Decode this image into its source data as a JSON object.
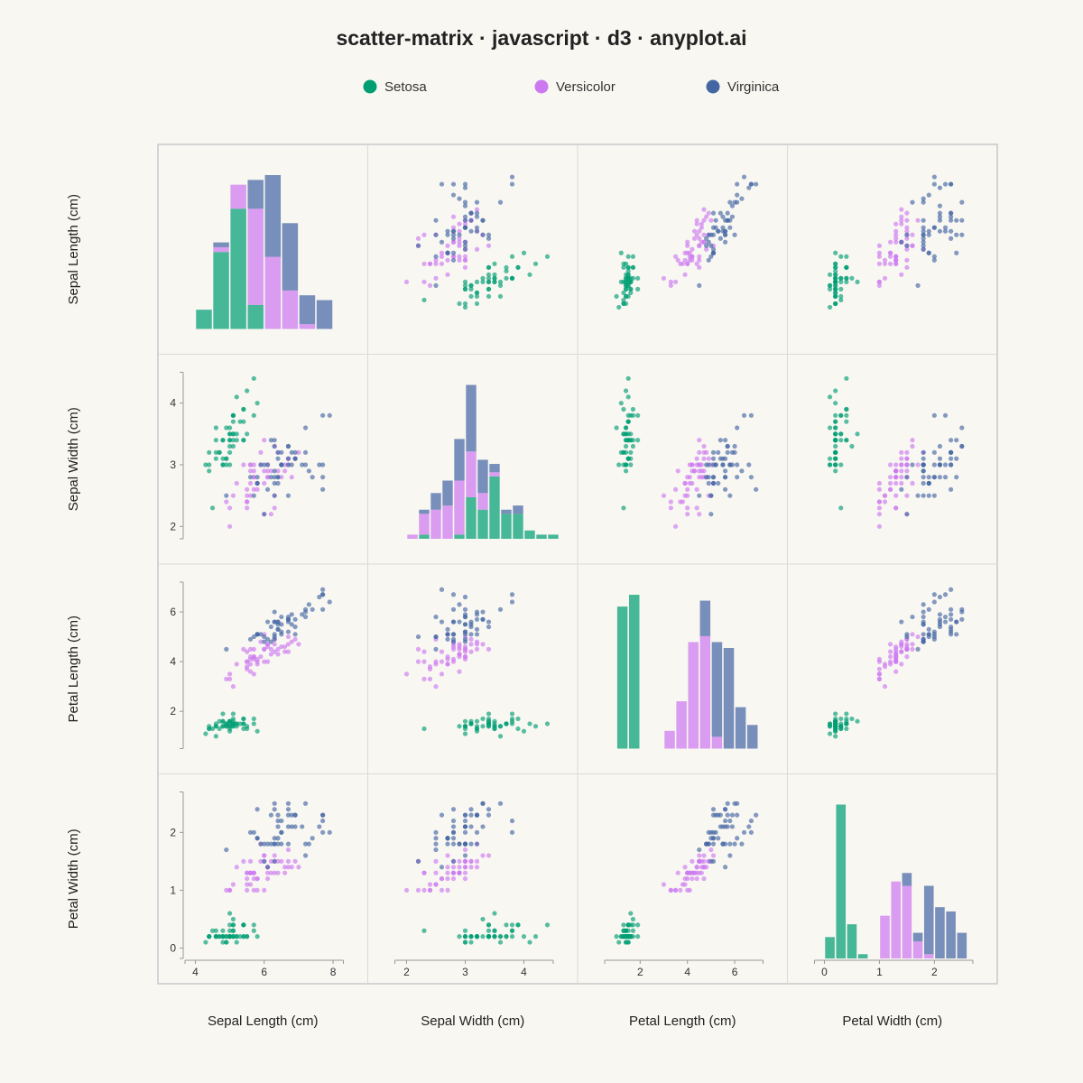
{
  "chart_data": {
    "type": "scatter",
    "title": "scatter-matrix · javascript · d3 · anyplot.ai",
    "grid": true,
    "legend_position": "top",
    "variables": [
      {
        "key": "sepal_length",
        "label": "Sepal Length (cm)",
        "domain": [
          3.7,
          8.3
        ],
        "ticks": [
          4,
          6,
          8
        ]
      },
      {
        "key": "sepal_width",
        "label": "Sepal Width (cm)",
        "domain": [
          1.8,
          4.5
        ],
        "ticks": [
          2,
          3,
          4
        ]
      },
      {
        "key": "petal_length",
        "label": "Petal Length (cm)",
        "domain": [
          0.5,
          7.2
        ],
        "ticks": [
          2,
          4,
          6
        ]
      },
      {
        "key": "petal_width",
        "label": "Petal Width (cm)",
        "domain": [
          -0.18,
          2.7
        ],
        "ticks": [
          0,
          1,
          2
        ]
      }
    ],
    "histogram_bins": [
      {
        "start": 4.0,
        "width": 0.5
      },
      {
        "start": 2.0,
        "width": 0.2
      },
      {
        "start": 1.0,
        "width": 0.5
      },
      {
        "start": 0.0,
        "width": 0.2
      }
    ],
    "series": [
      {
        "name": "Setosa",
        "color": "#009e73",
        "points": [
          [
            5.1,
            3.5,
            1.4,
            0.2
          ],
          [
            4.9,
            3.0,
            1.4,
            0.2
          ],
          [
            4.7,
            3.2,
            1.3,
            0.2
          ],
          [
            4.6,
            3.1,
            1.5,
            0.2
          ],
          [
            5.0,
            3.6,
            1.4,
            0.2
          ],
          [
            5.4,
            3.9,
            1.7,
            0.4
          ],
          [
            4.6,
            3.4,
            1.4,
            0.3
          ],
          [
            5.0,
            3.4,
            1.5,
            0.2
          ],
          [
            4.4,
            2.9,
            1.4,
            0.2
          ],
          [
            4.9,
            3.1,
            1.5,
            0.1
          ],
          [
            5.4,
            3.7,
            1.5,
            0.2
          ],
          [
            4.8,
            3.4,
            1.6,
            0.2
          ],
          [
            4.8,
            3.0,
            1.4,
            0.1
          ],
          [
            4.3,
            3.0,
            1.1,
            0.1
          ],
          [
            5.8,
            4.0,
            1.2,
            0.2
          ],
          [
            5.7,
            4.4,
            1.5,
            0.4
          ],
          [
            5.4,
            3.9,
            1.3,
            0.4
          ],
          [
            5.1,
            3.5,
            1.4,
            0.3
          ],
          [
            5.7,
            3.8,
            1.7,
            0.3
          ],
          [
            5.1,
            3.8,
            1.5,
            0.3
          ],
          [
            5.4,
            3.4,
            1.7,
            0.2
          ],
          [
            5.1,
            3.7,
            1.5,
            0.4
          ],
          [
            4.6,
            3.6,
            1.0,
            0.2
          ],
          [
            5.1,
            3.3,
            1.7,
            0.5
          ],
          [
            4.8,
            3.4,
            1.9,
            0.2
          ],
          [
            5.0,
            3.0,
            1.6,
            0.2
          ],
          [
            5.0,
            3.4,
            1.6,
            0.4
          ],
          [
            5.2,
            3.5,
            1.5,
            0.2
          ],
          [
            5.2,
            3.4,
            1.4,
            0.2
          ],
          [
            4.7,
            3.2,
            1.6,
            0.2
          ],
          [
            4.8,
            3.1,
            1.6,
            0.2
          ],
          [
            5.4,
            3.4,
            1.5,
            0.4
          ],
          [
            5.2,
            4.1,
            1.5,
            0.1
          ],
          [
            5.5,
            4.2,
            1.4,
            0.2
          ],
          [
            4.9,
            3.1,
            1.5,
            0.2
          ],
          [
            5.0,
            3.2,
            1.2,
            0.2
          ],
          [
            5.5,
            3.5,
            1.3,
            0.2
          ],
          [
            4.9,
            3.6,
            1.4,
            0.1
          ],
          [
            4.4,
            3.0,
            1.3,
            0.2
          ],
          [
            5.1,
            3.4,
            1.5,
            0.2
          ],
          [
            5.0,
            3.5,
            1.3,
            0.3
          ],
          [
            4.5,
            2.3,
            1.3,
            0.3
          ],
          [
            4.4,
            3.2,
            1.3,
            0.2
          ],
          [
            5.0,
            3.5,
            1.6,
            0.6
          ],
          [
            5.1,
            3.8,
            1.9,
            0.4
          ],
          [
            4.8,
            3.0,
            1.4,
            0.3
          ],
          [
            5.1,
            3.8,
            1.6,
            0.2
          ],
          [
            4.6,
            3.2,
            1.4,
            0.2
          ],
          [
            5.3,
            3.7,
            1.5,
            0.2
          ],
          [
            5.0,
            3.3,
            1.4,
            0.2
          ]
        ]
      },
      {
        "name": "Versicolor",
        "color": "#cc79f0",
        "points": [
          [
            7.0,
            3.2,
            4.7,
            1.4
          ],
          [
            6.4,
            3.2,
            4.5,
            1.5
          ],
          [
            6.9,
            3.1,
            4.9,
            1.5
          ],
          [
            5.5,
            2.3,
            4.0,
            1.3
          ],
          [
            6.5,
            2.8,
            4.6,
            1.5
          ],
          [
            5.7,
            2.8,
            4.5,
            1.3
          ],
          [
            6.3,
            3.3,
            4.7,
            1.6
          ],
          [
            4.9,
            2.4,
            3.3,
            1.0
          ],
          [
            6.6,
            2.9,
            4.6,
            1.3
          ],
          [
            5.2,
            2.7,
            3.9,
            1.4
          ],
          [
            5.0,
            2.0,
            3.5,
            1.0
          ],
          [
            5.9,
            3.0,
            4.2,
            1.5
          ],
          [
            6.0,
            2.2,
            4.0,
            1.0
          ],
          [
            6.1,
            2.9,
            4.7,
            1.4
          ],
          [
            5.6,
            2.9,
            3.6,
            1.3
          ],
          [
            6.7,
            3.1,
            4.4,
            1.4
          ],
          [
            5.6,
            3.0,
            4.5,
            1.5
          ],
          [
            5.8,
            2.7,
            4.1,
            1.0
          ],
          [
            6.2,
            2.2,
            4.5,
            1.5
          ],
          [
            5.6,
            2.5,
            3.9,
            1.1
          ],
          [
            5.9,
            3.2,
            4.8,
            1.8
          ],
          [
            6.1,
            2.8,
            4.0,
            1.3
          ],
          [
            6.3,
            2.5,
            4.9,
            1.5
          ],
          [
            6.1,
            2.8,
            4.7,
            1.2
          ],
          [
            6.4,
            2.9,
            4.3,
            1.3
          ],
          [
            6.6,
            3.0,
            4.4,
            1.4
          ],
          [
            6.8,
            2.8,
            4.8,
            1.4
          ],
          [
            6.7,
            3.0,
            5.0,
            1.7
          ],
          [
            6.0,
            2.9,
            4.5,
            1.5
          ],
          [
            5.7,
            2.6,
            3.5,
            1.0
          ],
          [
            5.5,
            2.4,
            3.8,
            1.1
          ],
          [
            5.5,
            2.4,
            3.7,
            1.0
          ],
          [
            5.8,
            2.7,
            3.9,
            1.2
          ],
          [
            6.0,
            2.7,
            5.1,
            1.6
          ],
          [
            5.4,
            3.0,
            4.5,
            1.5
          ],
          [
            6.0,
            3.4,
            4.5,
            1.6
          ],
          [
            6.7,
            3.1,
            4.7,
            1.5
          ],
          [
            6.3,
            2.3,
            4.4,
            1.3
          ],
          [
            5.6,
            3.0,
            4.1,
            1.3
          ],
          [
            5.5,
            2.5,
            4.0,
            1.3
          ],
          [
            5.5,
            2.6,
            4.4,
            1.2
          ],
          [
            6.1,
            3.0,
            4.6,
            1.4
          ],
          [
            5.8,
            2.6,
            4.0,
            1.2
          ],
          [
            5.0,
            2.3,
            3.3,
            1.0
          ],
          [
            5.6,
            2.7,
            4.2,
            1.3
          ],
          [
            5.7,
            3.0,
            4.2,
            1.2
          ],
          [
            5.7,
            2.9,
            4.2,
            1.3
          ],
          [
            6.2,
            2.9,
            4.3,
            1.3
          ],
          [
            5.1,
            2.5,
            3.0,
            1.1
          ],
          [
            5.7,
            2.8,
            4.1,
            1.3
          ]
        ]
      },
      {
        "name": "Virginica",
        "color": "#4467a3",
        "points": [
          [
            6.3,
            3.3,
            6.0,
            2.5
          ],
          [
            5.8,
            2.7,
            5.1,
            1.9
          ],
          [
            7.1,
            3.0,
            5.9,
            2.1
          ],
          [
            6.3,
            2.9,
            5.6,
            1.8
          ],
          [
            6.5,
            3.0,
            5.8,
            2.2
          ],
          [
            7.6,
            3.0,
            6.6,
            2.1
          ],
          [
            4.9,
            2.5,
            4.5,
            1.7
          ],
          [
            7.3,
            2.9,
            6.3,
            1.8
          ],
          [
            6.7,
            2.5,
            5.8,
            1.8
          ],
          [
            7.2,
            3.6,
            6.1,
            2.5
          ],
          [
            6.5,
            3.2,
            5.1,
            2.0
          ],
          [
            6.4,
            2.7,
            5.3,
            1.9
          ],
          [
            6.8,
            3.0,
            5.5,
            2.1
          ],
          [
            5.7,
            2.5,
            5.0,
            2.0
          ],
          [
            5.8,
            2.8,
            5.1,
            2.4
          ],
          [
            6.4,
            3.2,
            5.3,
            2.3
          ],
          [
            6.5,
            3.0,
            5.5,
            1.8
          ],
          [
            7.7,
            3.8,
            6.7,
            2.2
          ],
          [
            7.7,
            2.6,
            6.9,
            2.3
          ],
          [
            6.0,
            2.2,
            5.0,
            1.5
          ],
          [
            6.9,
            3.2,
            5.7,
            2.3
          ],
          [
            5.6,
            2.8,
            4.9,
            2.0
          ],
          [
            7.7,
            2.8,
            6.7,
            2.0
          ],
          [
            6.3,
            2.7,
            4.9,
            1.8
          ],
          [
            6.7,
            3.3,
            5.7,
            2.1
          ],
          [
            7.2,
            3.2,
            6.0,
            1.8
          ],
          [
            6.2,
            2.8,
            4.8,
            1.8
          ],
          [
            6.1,
            3.0,
            4.9,
            1.8
          ],
          [
            6.4,
            2.8,
            5.6,
            2.1
          ],
          [
            7.2,
            3.0,
            5.8,
            1.6
          ],
          [
            7.4,
            2.8,
            6.1,
            1.9
          ],
          [
            7.9,
            3.8,
            6.4,
            2.0
          ],
          [
            6.4,
            2.8,
            5.6,
            2.2
          ],
          [
            6.3,
            2.8,
            5.1,
            1.5
          ],
          [
            6.1,
            2.6,
            5.6,
            1.4
          ],
          [
            7.7,
            3.0,
            6.1,
            2.3
          ],
          [
            6.3,
            3.4,
            5.6,
            2.4
          ],
          [
            6.4,
            3.1,
            5.5,
            1.8
          ],
          [
            6.0,
            3.0,
            4.8,
            1.8
          ],
          [
            6.9,
            3.1,
            5.4,
            2.1
          ],
          [
            6.7,
            3.1,
            5.6,
            2.4
          ],
          [
            6.9,
            3.1,
            5.1,
            2.3
          ],
          [
            5.8,
            2.7,
            5.1,
            1.9
          ],
          [
            6.8,
            3.2,
            5.9,
            2.3
          ],
          [
            6.7,
            3.3,
            5.7,
            2.5
          ],
          [
            6.7,
            3.0,
            5.2,
            2.3
          ],
          [
            6.3,
            2.5,
            5.0,
            1.9
          ],
          [
            6.5,
            3.0,
            5.2,
            2.0
          ],
          [
            6.2,
            3.4,
            5.4,
            2.3
          ],
          [
            5.9,
            3.0,
            5.1,
            1.8
          ]
        ]
      }
    ]
  }
}
